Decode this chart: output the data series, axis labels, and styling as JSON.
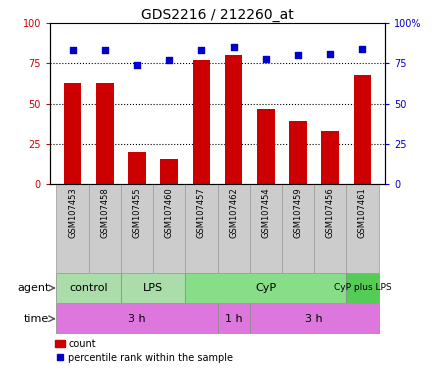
{
  "title": "GDS2216 / 212260_at",
  "samples": [
    "GSM107453",
    "GSM107458",
    "GSM107455",
    "GSM107460",
    "GSM107457",
    "GSM107462",
    "GSM107454",
    "GSM107459",
    "GSM107456",
    "GSM107461"
  ],
  "counts": [
    63,
    63,
    20,
    16,
    77,
    80,
    47,
    39,
    33,
    68
  ],
  "percentile_ranks": [
    83,
    83,
    74,
    77,
    83,
    85,
    78,
    80,
    81,
    84
  ],
  "agent_groups": [
    {
      "label": "control",
      "start": 0,
      "end": 2
    },
    {
      "label": "LPS",
      "start": 2,
      "end": 4
    },
    {
      "label": "CyP",
      "start": 4,
      "end": 9
    },
    {
      "label": "CyP plus LPS",
      "start": 9,
      "end": 10
    }
  ],
  "time_groups": [
    {
      "label": "3 h",
      "start": 0,
      "end": 5
    },
    {
      "label": "1 h",
      "start": 5,
      "end": 6
    },
    {
      "label": "3 h",
      "start": 6,
      "end": 10
    }
  ],
  "agent_color_light": "#AADDAA",
  "agent_color_mid": "#88DD88",
  "agent_color_dark": "#55CC55",
  "time_color": "#DD77DD",
  "sample_bg": "#CCCCCC",
  "bar_color": "#CC0000",
  "dot_color": "#0000CC",
  "ylim": [
    0,
    100
  ],
  "yticks": [
    0,
    25,
    50,
    75,
    100
  ],
  "ytick_labels_right": [
    "0",
    "25",
    "50",
    "75",
    "100%"
  ],
  "grid_lines": [
    25,
    50,
    75
  ],
  "bar_width": 0.55,
  "title_fontsize": 10,
  "tick_fontsize": 7,
  "sample_fontsize": 6,
  "row_fontsize": 8,
  "legend_fontsize": 7,
  "background_color": "#ffffff"
}
